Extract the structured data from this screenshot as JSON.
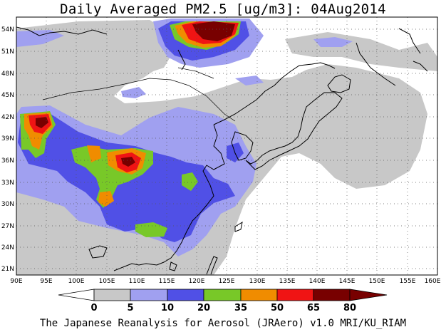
{
  "title": "Daily Averaged PM2.5 [ug/m3]: 04Aug2014",
  "footer": "The Japanese Reanalysis for Aerosol (JRAero) v1.0 MRI/KU_RIAM",
  "lat_labels": [
    "54N",
    "51N",
    "48N",
    "45N",
    "42N",
    "39N",
    "36N",
    "33N",
    "30N",
    "27N",
    "24N",
    "21N"
  ],
  "lon_labels": [
    "90E",
    "95E",
    "100E",
    "105E",
    "110E",
    "115E",
    "120E",
    "125E",
    "130E",
    "135E",
    "140E",
    "145E",
    "150E",
    "155E",
    "160E"
  ],
  "colorbar": {
    "labels": [
      "0",
      "5",
      "10",
      "20",
      "35",
      "50",
      "65",
      "80"
    ],
    "colors": [
      "#ffffff",
      "#c8c8c8",
      "#a0a0f0",
      "#5050e6",
      "#78c828",
      "#f08c00",
      "#f01414",
      "#780000"
    ]
  },
  "map_extent": {
    "lon": [
      90,
      160
    ],
    "lat": [
      20,
      55
    ]
  },
  "levels": {
    "gray": "#c8c8c8",
    "lightblue": "#a0a0f0",
    "blue": "#5050e6",
    "green": "#78c828",
    "orange": "#f08c00",
    "red": "#f01414",
    "darkred": "#780000"
  }
}
